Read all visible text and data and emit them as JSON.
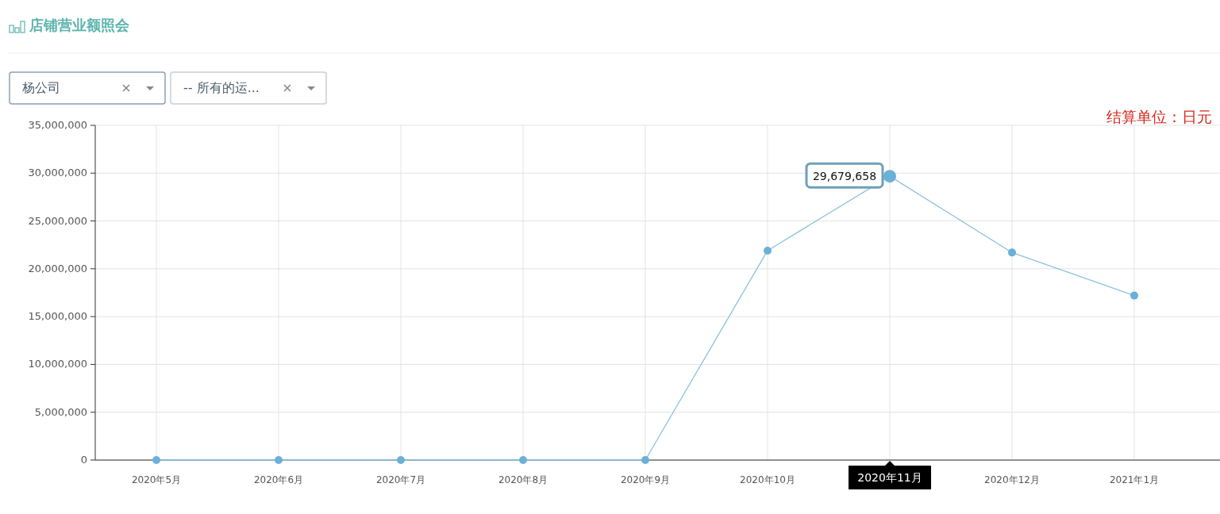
{
  "chart_data": {
    "type": "line",
    "title": "店铺营业额照会",
    "annotations": [
      "结算单位：日元",
      "杨公司",
      "-- 所有的运..."
    ],
    "categories": [
      "2020年5月",
      "2020年6月",
      "2020年7月",
      "2020年8月",
      "2020年9月",
      "2020年10月",
      "2020年11月",
      "2020年12月",
      "2021年1月"
    ],
    "series": [
      {
        "color": "#6ab0d8",
        "values": [
          0,
          0,
          0,
          0,
          0,
          21900000,
          29679658,
          21700000,
          17200000
        ],
        "value_labels": [
          null,
          null,
          null,
          null,
          null,
          null,
          "29,679,658",
          null,
          null
        ]
      }
    ],
    "ylim": [
      0,
      35000000
    ],
    "yticks": [
      {
        "value": 0,
        "label": "0"
      },
      {
        "value": 5000000,
        "label": "5,000,000"
      },
      {
        "value": 10000000,
        "label": "10,000,000"
      },
      {
        "value": 15000000,
        "label": "15,000,000"
      },
      {
        "value": 20000000,
        "label": "20,000,000"
      },
      {
        "value": 25000000,
        "label": "25,000,000"
      },
      {
        "value": 30000000,
        "label": "30,000,000"
      },
      {
        "value": 35000000,
        "label": "35,000,000"
      }
    ],
    "grid": true,
    "marker": "circle"
  }
}
